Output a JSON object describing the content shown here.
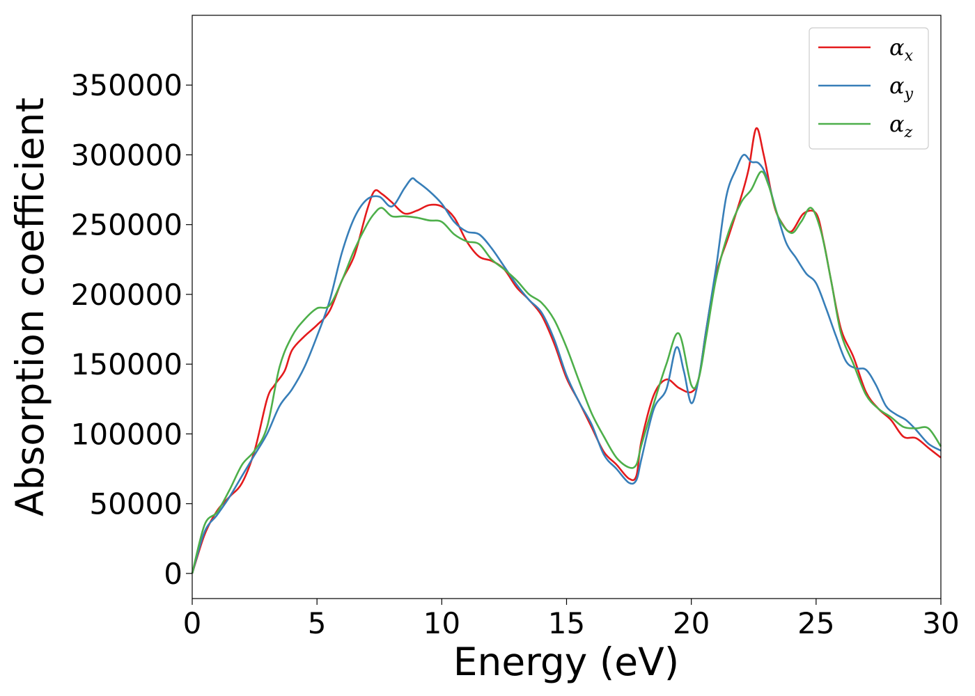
{
  "chart_data": {
    "type": "line",
    "xlabel": "Energy (eV)",
    "ylabel": "Absorption coefficient",
    "xlim": [
      0,
      30
    ],
    "ylim": [
      -18000,
      400000
    ],
    "xticks": [
      0,
      5,
      10,
      15,
      20,
      25,
      30
    ],
    "xtick_labels": [
      "0",
      "5",
      "10",
      "15",
      "20",
      "25",
      "30"
    ],
    "yticks": [
      0,
      50000,
      100000,
      150000,
      200000,
      250000,
      300000,
      350000
    ],
    "ytick_labels": [
      "0",
      "50000",
      "100000",
      "150000",
      "200000",
      "250000",
      "300000",
      "350000"
    ],
    "grid": false,
    "legend_position": "top-right",
    "series": [
      {
        "name": "αx",
        "symbol": "α",
        "subscript": "x",
        "color": "#e41a1c",
        "x": [
          0,
          0.5,
          1.0,
          1.5,
          2.0,
          2.5,
          3.0,
          3.3,
          3.7,
          4.0,
          4.5,
          5.0,
          5.5,
          6.0,
          6.5,
          7.0,
          7.3,
          7.6,
          8.0,
          8.5,
          9.0,
          9.5,
          10.0,
          10.5,
          11.0,
          11.5,
          12.0,
          12.5,
          13.0,
          13.5,
          14.0,
          14.5,
          15.0,
          15.5,
          16.0,
          16.5,
          17.0,
          17.5,
          17.8,
          18.0,
          18.5,
          19.0,
          19.5,
          20.0,
          20.3,
          20.6,
          21.0,
          21.5,
          22.0,
          22.3,
          22.6,
          22.9,
          23.3,
          23.6,
          24.0,
          24.5,
          25.0,
          25.3,
          25.6,
          26.0,
          26.5,
          27.0,
          27.5,
          28.0,
          28.5,
          29.0,
          29.5,
          30.0
        ],
        "y": [
          0,
          28000,
          45000,
          55000,
          65000,
          88000,
          125000,
          135000,
          145000,
          160000,
          170000,
          178000,
          188000,
          210000,
          228000,
          260000,
          274000,
          272000,
          266000,
          258000,
          260000,
          264000,
          263000,
          255000,
          238000,
          227000,
          224000,
          218000,
          205000,
          196000,
          185000,
          165000,
          140000,
          123000,
          105000,
          87000,
          78000,
          68000,
          70000,
          95000,
          128000,
          139000,
          133000,
          130000,
          140000,
          175000,
          215000,
          242000,
          270000,
          290000,
          319000,
          300000,
          265000,
          252000,
          245000,
          258000,
          258000,
          238000,
          210000,
          175000,
          155000,
          130000,
          118000,
          110000,
          98000,
          97000,
          90000,
          83000
        ]
      },
      {
        "name": "αy",
        "symbol": "α",
        "subscript": "y",
        "color": "#377eb8",
        "x": [
          0,
          0.5,
          1.0,
          1.5,
          2.0,
          2.5,
          3.0,
          3.5,
          4.0,
          4.5,
          5.0,
          5.5,
          6.0,
          6.5,
          7.0,
          7.5,
          8.0,
          8.5,
          8.8,
          9.0,
          9.5,
          10.0,
          10.5,
          11.0,
          11.5,
          12.0,
          12.5,
          13.0,
          13.5,
          14.0,
          14.5,
          15.0,
          15.5,
          16.0,
          16.5,
          17.0,
          17.5,
          17.8,
          18.0,
          18.5,
          19.0,
          19.4,
          19.7,
          20.0,
          20.3,
          20.6,
          21.0,
          21.4,
          21.8,
          22.1,
          22.4,
          22.7,
          23.0,
          23.4,
          23.8,
          24.2,
          24.6,
          25.0,
          25.4,
          25.8,
          26.2,
          26.6,
          27.0,
          27.4,
          27.8,
          28.2,
          28.6,
          29.0,
          29.5,
          30.0
        ],
        "y": [
          0,
          30000,
          42000,
          55000,
          70000,
          85000,
          100000,
          120000,
          132000,
          148000,
          170000,
          195000,
          230000,
          255000,
          268000,
          270000,
          263000,
          276000,
          283000,
          281000,
          274000,
          265000,
          252000,
          245000,
          243000,
          233000,
          220000,
          207000,
          196000,
          187000,
          168000,
          142000,
          123000,
          107000,
          85000,
          75000,
          65000,
          67000,
          82000,
          118000,
          132000,
          162000,
          145000,
          122000,
          140000,
          175000,
          220000,
          270000,
          290000,
          300000,
          295000,
          294000,
          285000,
          260000,
          237000,
          226000,
          215000,
          208000,
          190000,
          170000,
          152000,
          147000,
          146000,
          135000,
          120000,
          114000,
          110000,
          103000,
          93000,
          88000
        ]
      },
      {
        "name": "αz",
        "symbol": "α",
        "subscript": "z",
        "color": "#4daf4a",
        "x": [
          0,
          0.5,
          1.0,
          1.5,
          2.0,
          2.5,
          3.0,
          3.5,
          4.0,
          4.5,
          5.0,
          5.5,
          6.0,
          6.5,
          7.0,
          7.3,
          7.6,
          8.0,
          8.5,
          9.0,
          9.5,
          10.0,
          10.5,
          11.0,
          11.5,
          12.0,
          12.5,
          13.0,
          13.5,
          14.0,
          14.5,
          15.0,
          15.5,
          16.0,
          16.5,
          17.0,
          17.5,
          17.8,
          18.0,
          18.5,
          19.0,
          19.5,
          20.0,
          20.3,
          20.6,
          21.0,
          21.5,
          22.0,
          22.4,
          22.8,
          23.1,
          23.5,
          24.0,
          24.4,
          24.8,
          25.2,
          25.6,
          26.0,
          26.5,
          27.0,
          27.5,
          28.0,
          28.5,
          29.0,
          29.5,
          30.0
        ],
        "y": [
          0,
          35000,
          44000,
          60000,
          78000,
          88000,
          105000,
          148000,
          170000,
          182000,
          190000,
          192000,
          210000,
          232000,
          250000,
          258000,
          262000,
          256000,
          256000,
          255000,
          253000,
          252000,
          243000,
          238000,
          236000,
          225000,
          218000,
          210000,
          200000,
          194000,
          182000,
          162000,
          138000,
          115000,
          98000,
          83000,
          76000,
          78000,
          92000,
          122000,
          150000,
          172000,
          135000,
          140000,
          170000,
          212000,
          245000,
          266000,
          275000,
          288000,
          278000,
          255000,
          244000,
          252000,
          262000,
          245000,
          210000,
          172000,
          150000,
          128000,
          118000,
          112000,
          105000,
          104000,
          104000,
          91000
        ]
      }
    ]
  }
}
